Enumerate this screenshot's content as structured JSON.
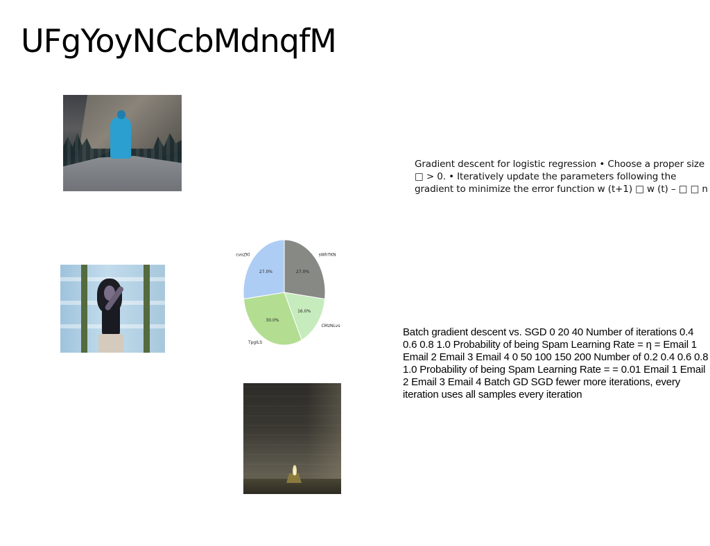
{
  "slide": {
    "title": "UFgYoyNCcbMdnqfM"
  },
  "text_blocks": {
    "gradient_descent": "Gradient descent for logistic regression • Choose a proper size □ > 0. • Iteratively update the parameters following the gradient to minimize the error function w (t+1) □ w (t) – □ □ n",
    "batch_vs_sgd": "Batch gradient descent vs. SGD 0 20 40 Number of iterations 0.4 0.6 0.8 1.0 Probability of being Spam Learning Rate = η = Email 1 Email 2 Email 3 Email 4 0 50 100 150 200 Number of 0.2 0.4 0.6 0.8 1.0 Probability of being Spam Learning Rate = = 0.01 Email 1 Email 2 Email 3 Email 4 Batch GD SGD fewer more iterations, every iteration uses all samples every iteration"
  },
  "images": {
    "hiker": "photo-person-on-rock",
    "woman": "photo-woman-at-window",
    "candle": "photo-candle-in-dark-room"
  },
  "chart_data": {
    "type": "pie",
    "categories": [
      "sWhTKN",
      "CMzNLvs",
      "TpgILS",
      "cvoZKl"
    ],
    "values": [
      27.0,
      16.0,
      30.0,
      27.0
    ],
    "value_labels": [
      "27.0%",
      "16.0%",
      "30.0%",
      "27.0%"
    ],
    "colors": [
      "#878985",
      "#c6ebbd",
      "#b3dd91",
      "#aecdf4"
    ],
    "start_angle_deg": 90,
    "direction": "clockwise",
    "legend": "none"
  }
}
